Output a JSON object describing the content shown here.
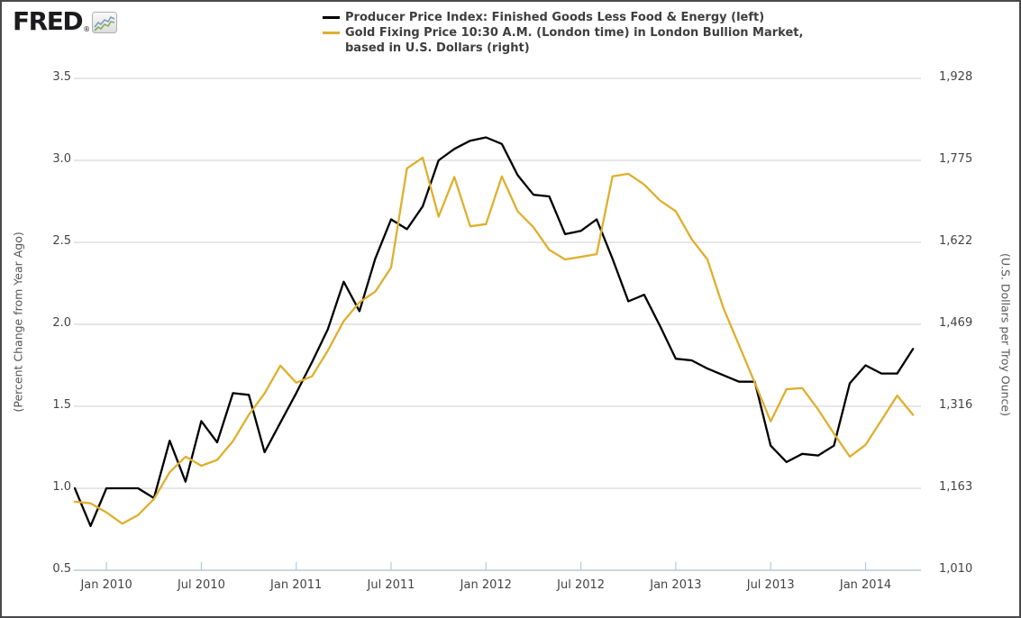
{
  "window": {
    "background": "#ffffff",
    "border_color": "#49494b"
  },
  "header": {
    "logo": {
      "text": "FRED",
      "registered_mark": "®",
      "icon": "line-chart-icon"
    },
    "legend": {
      "line1": "Producer Price Index: Finished Goods Less Food & Energy (left)",
      "line2": "Gold Fixing Price 10:30 A.M. (London time) in London Bullion Market,",
      "line3": "based in U.S. Dollars (right)",
      "marker1_color": "#000000",
      "marker2_color": "#dfaf2c"
    }
  },
  "chart_data": {
    "type": "line",
    "title": "",
    "grid": {
      "horizontal": true,
      "vertical": false,
      "color": "#cccccc"
    },
    "axis_color": "#b7c8da",
    "legend_position": "top",
    "x_monthly": [
      "2009-11",
      "2009-12",
      "2010-01",
      "2010-02",
      "2010-03",
      "2010-04",
      "2010-05",
      "2010-06",
      "2010-07",
      "2010-08",
      "2010-09",
      "2010-10",
      "2010-11",
      "2010-12",
      "2011-01",
      "2011-02",
      "2011-03",
      "2011-04",
      "2011-05",
      "2011-06",
      "2011-07",
      "2011-08",
      "2011-09",
      "2011-10",
      "2011-11",
      "2011-12",
      "2012-01",
      "2012-02",
      "2012-03",
      "2012-04",
      "2012-05",
      "2012-06",
      "2012-07",
      "2012-08",
      "2012-09",
      "2012-10",
      "2012-11",
      "2012-12",
      "2013-01",
      "2013-02",
      "2013-03",
      "2013-04",
      "2013-05",
      "2013-06",
      "2013-07",
      "2013-08",
      "2013-09",
      "2013-10",
      "2013-11",
      "2013-12",
      "2014-01",
      "2014-02",
      "2014-03",
      "2014-04"
    ],
    "x_axis": {
      "tick_labels": [
        "Jan 2010",
        "Jul 2010",
        "Jan 2011",
        "Jul 2011",
        "Jan 2012",
        "Jul 2012",
        "Jan 2013",
        "Jul 2013",
        "Jan 2014"
      ],
      "tick_month_indices": [
        2,
        8,
        14,
        20,
        26,
        32,
        38,
        44,
        50
      ]
    },
    "left_axis": {
      "unit_label": "(Percent Change from Year Ago)",
      "tick_labels": [
        "3.5",
        "3.0",
        "2.5",
        "2.0",
        "1.5",
        "1.0",
        "0.5"
      ],
      "tick_values": [
        3.5,
        3.0,
        2.5,
        2.0,
        1.5,
        1.0,
        0.5
      ],
      "range": [
        0.5,
        3.5
      ]
    },
    "right_axis": {
      "unit_label": "(U.S. Dollars per Troy Ounce)",
      "tick_labels": [
        "1,928",
        "1,775",
        "1,622",
        "1,469",
        "1,316",
        "1,163",
        "1,010"
      ],
      "tick_values": [
        1928,
        1775,
        1622,
        1469,
        1316,
        1163,
        1010
      ],
      "range": [
        1010,
        1928
      ]
    },
    "series": [
      {
        "name": "Producer Price Index: Finished Goods Less Food & Energy (left)",
        "axis": "left",
        "color": "#000000",
        "values": [
          1.0,
          0.77,
          1.0,
          1.0,
          1.0,
          0.94,
          1.29,
          1.04,
          1.41,
          1.28,
          1.58,
          1.57,
          1.22,
          1.4,
          1.58,
          1.77,
          1.97,
          2.26,
          2.08,
          2.4,
          2.64,
          2.58,
          2.72,
          3.0,
          3.07,
          3.12,
          3.14,
          3.1,
          2.91,
          2.79,
          2.78,
          2.55,
          2.57,
          2.64,
          2.4,
          2.14,
          2.18,
          1.99,
          1.79,
          1.78,
          1.73,
          1.69,
          1.65,
          1.65,
          1.26,
          1.16,
          1.21,
          1.2,
          1.26,
          1.64,
          1.75,
          1.7,
          1.7,
          1.85
        ]
      },
      {
        "name": "Gold Fixing Price 10:30 A.M. (London time) in London Bullion Market, based in U.S. Dollars (right)",
        "axis": "right",
        "color": "#dfaf2c",
        "values": [
          1138,
          1135,
          1118,
          1097,
          1113,
          1143,
          1193,
          1222,
          1205,
          1216,
          1251,
          1300,
          1340,
          1392,
          1360,
          1372,
          1420,
          1475,
          1510,
          1530,
          1575,
          1760,
          1780,
          1670,
          1744,
          1652,
          1656,
          1745,
          1680,
          1650,
          1608,
          1590,
          1595,
          1600,
          1745,
          1750,
          1730,
          1700,
          1680,
          1628,
          1590,
          1500,
          1430,
          1360,
          1288,
          1348,
          1350,
          1310,
          1265,
          1222,
          1244,
          1290,
          1336,
          1300
        ]
      }
    ]
  }
}
